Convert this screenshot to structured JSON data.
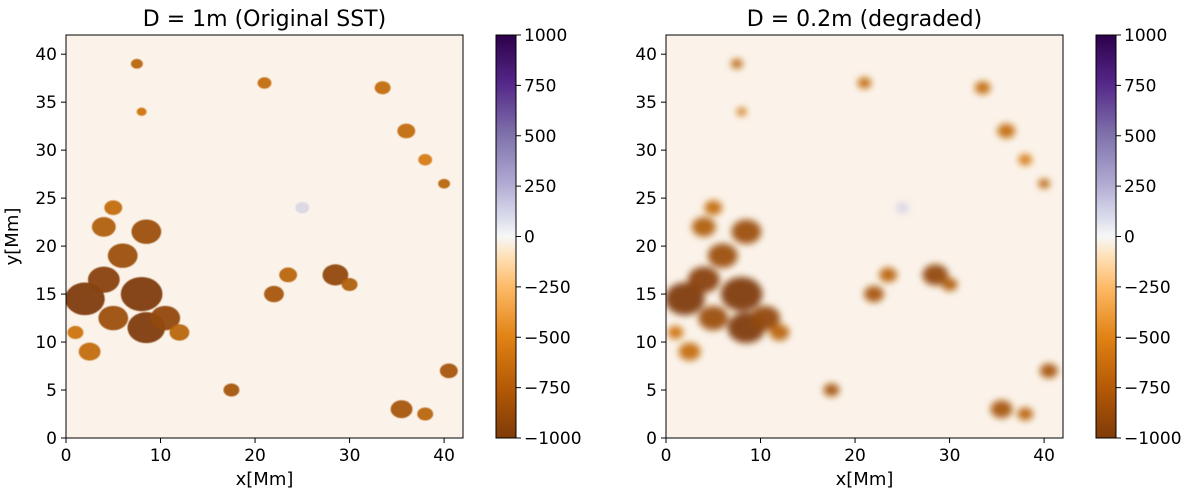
{
  "chart_data": [
    {
      "type": "heatmap",
      "title": "D = 1m (Original SST)",
      "xlabel": "x[Mm]",
      "ylabel": "y[Mm]",
      "xlim": [
        0,
        42
      ],
      "ylim": [
        0,
        42
      ],
      "xticks": [
        0,
        10,
        20,
        30,
        40
      ],
      "yticks": [
        0,
        5,
        10,
        15,
        20,
        25,
        30,
        35,
        40
      ],
      "colorbar": {
        "min": -1000,
        "max": 1000,
        "ticks": [
          1000,
          750,
          500,
          250,
          0,
          -250,
          -500,
          -750,
          -1000
        ],
        "colormap": "PuOr (brown negative, purple positive)"
      },
      "blur": 0,
      "features": [
        {
          "x": 2,
          "y": 14.5,
          "r": 2.0,
          "v": -1000
        },
        {
          "x": 4,
          "y": 16.5,
          "r": 1.6,
          "v": -950
        },
        {
          "x": 5,
          "y": 12.5,
          "r": 1.5,
          "v": -850
        },
        {
          "x": 8,
          "y": 15,
          "r": 2.1,
          "v": -1000
        },
        {
          "x": 8.5,
          "y": 11.5,
          "r": 1.9,
          "v": -1000
        },
        {
          "x": 10.5,
          "y": 12.5,
          "r": 1.5,
          "v": -900
        },
        {
          "x": 6,
          "y": 19,
          "r": 1.5,
          "v": -850
        },
        {
          "x": 4,
          "y": 22,
          "r": 1.2,
          "v": -750
        },
        {
          "x": 8.5,
          "y": 21.5,
          "r": 1.5,
          "v": -850
        },
        {
          "x": 5,
          "y": 24,
          "r": 0.9,
          "v": -650
        },
        {
          "x": 2.5,
          "y": 9,
          "r": 1.1,
          "v": -650
        },
        {
          "x": 12,
          "y": 11,
          "r": 1.0,
          "v": -700
        },
        {
          "x": 1,
          "y": 11,
          "r": 0.8,
          "v": -600
        },
        {
          "x": 17.5,
          "y": 5,
          "r": 0.8,
          "v": -800
        },
        {
          "x": 22,
          "y": 15,
          "r": 1.0,
          "v": -800
        },
        {
          "x": 23.5,
          "y": 17,
          "r": 0.9,
          "v": -700
        },
        {
          "x": 28.5,
          "y": 17,
          "r": 1.3,
          "v": -900
        },
        {
          "x": 30,
          "y": 16,
          "r": 0.8,
          "v": -750
        },
        {
          "x": 33.5,
          "y": 36.5,
          "r": 0.8,
          "v": -650
        },
        {
          "x": 36,
          "y": 32,
          "r": 0.9,
          "v": -650
        },
        {
          "x": 40,
          "y": 26.5,
          "r": 0.6,
          "v": -700
        },
        {
          "x": 38,
          "y": 29,
          "r": 0.7,
          "v": -550
        },
        {
          "x": 21,
          "y": 37,
          "r": 0.7,
          "v": -650
        },
        {
          "x": 7.5,
          "y": 39,
          "r": 0.6,
          "v": -700
        },
        {
          "x": 8,
          "y": 34,
          "r": 0.5,
          "v": -600
        },
        {
          "x": 35.5,
          "y": 3,
          "r": 1.1,
          "v": -800
        },
        {
          "x": 38,
          "y": 2.5,
          "r": 0.8,
          "v": -700
        },
        {
          "x": 40.5,
          "y": 7,
          "r": 0.9,
          "v": -800
        },
        {
          "x": 25,
          "y": 24,
          "r": 0.7,
          "v": 120
        }
      ]
    },
    {
      "type": "heatmap",
      "title": "D = 0.2m (degraded)",
      "xlabel": "x[Mm]",
      "ylabel": "",
      "xlim": [
        0,
        42
      ],
      "ylim": [
        0,
        42
      ],
      "xticks": [
        0,
        10,
        20,
        30,
        40
      ],
      "yticks": [
        0,
        5,
        10,
        15,
        20,
        25,
        30,
        35,
        40
      ],
      "colorbar": {
        "min": -1000,
        "max": 1000,
        "ticks": [
          1000,
          750,
          500,
          250,
          0,
          -250,
          -500,
          -750,
          -1000
        ],
        "colormap": "PuOr (brown negative, purple positive)"
      },
      "blur": 1,
      "features": [
        {
          "x": 2,
          "y": 14.5,
          "r": 2.0,
          "v": -1000
        },
        {
          "x": 4,
          "y": 16.5,
          "r": 1.6,
          "v": -950
        },
        {
          "x": 5,
          "y": 12.5,
          "r": 1.5,
          "v": -850
        },
        {
          "x": 8,
          "y": 15,
          "r": 2.1,
          "v": -1000
        },
        {
          "x": 8.5,
          "y": 11.5,
          "r": 1.9,
          "v": -1000
        },
        {
          "x": 10.5,
          "y": 12.5,
          "r": 1.5,
          "v": -900
        },
        {
          "x": 6,
          "y": 19,
          "r": 1.5,
          "v": -850
        },
        {
          "x": 4,
          "y": 22,
          "r": 1.2,
          "v": -750
        },
        {
          "x": 8.5,
          "y": 21.5,
          "r": 1.5,
          "v": -850
        },
        {
          "x": 5,
          "y": 24,
          "r": 0.9,
          "v": -650
        },
        {
          "x": 2.5,
          "y": 9,
          "r": 1.1,
          "v": -650
        },
        {
          "x": 12,
          "y": 11,
          "r": 1.0,
          "v": -700
        },
        {
          "x": 1,
          "y": 11,
          "r": 0.8,
          "v": -600
        },
        {
          "x": 17.5,
          "y": 5,
          "r": 0.8,
          "v": -800
        },
        {
          "x": 22,
          "y": 15,
          "r": 1.0,
          "v": -800
        },
        {
          "x": 23.5,
          "y": 17,
          "r": 0.9,
          "v": -700
        },
        {
          "x": 28.5,
          "y": 17,
          "r": 1.3,
          "v": -900
        },
        {
          "x": 30,
          "y": 16,
          "r": 0.8,
          "v": -750
        },
        {
          "x": 33.5,
          "y": 36.5,
          "r": 0.8,
          "v": -650
        },
        {
          "x": 36,
          "y": 32,
          "r": 0.9,
          "v": -650
        },
        {
          "x": 40,
          "y": 26.5,
          "r": 0.6,
          "v": -700
        },
        {
          "x": 38,
          "y": 29,
          "r": 0.7,
          "v": -550
        },
        {
          "x": 21,
          "y": 37,
          "r": 0.7,
          "v": -650
        },
        {
          "x": 7.5,
          "y": 39,
          "r": 0.6,
          "v": -700
        },
        {
          "x": 8,
          "y": 34,
          "r": 0.5,
          "v": -600
        },
        {
          "x": 35.5,
          "y": 3,
          "r": 1.1,
          "v": -800
        },
        {
          "x": 38,
          "y": 2.5,
          "r": 0.8,
          "v": -700
        },
        {
          "x": 40.5,
          "y": 7,
          "r": 0.9,
          "v": -800
        },
        {
          "x": 25,
          "y": 24,
          "r": 0.7,
          "v": 120
        }
      ]
    }
  ],
  "colors": {
    "neg_max": "#7f3b08",
    "neg_mid": "#e08214",
    "zero": "#f7f7f7",
    "pos_mid": "#8073ac",
    "pos_max": "#2d004b"
  }
}
